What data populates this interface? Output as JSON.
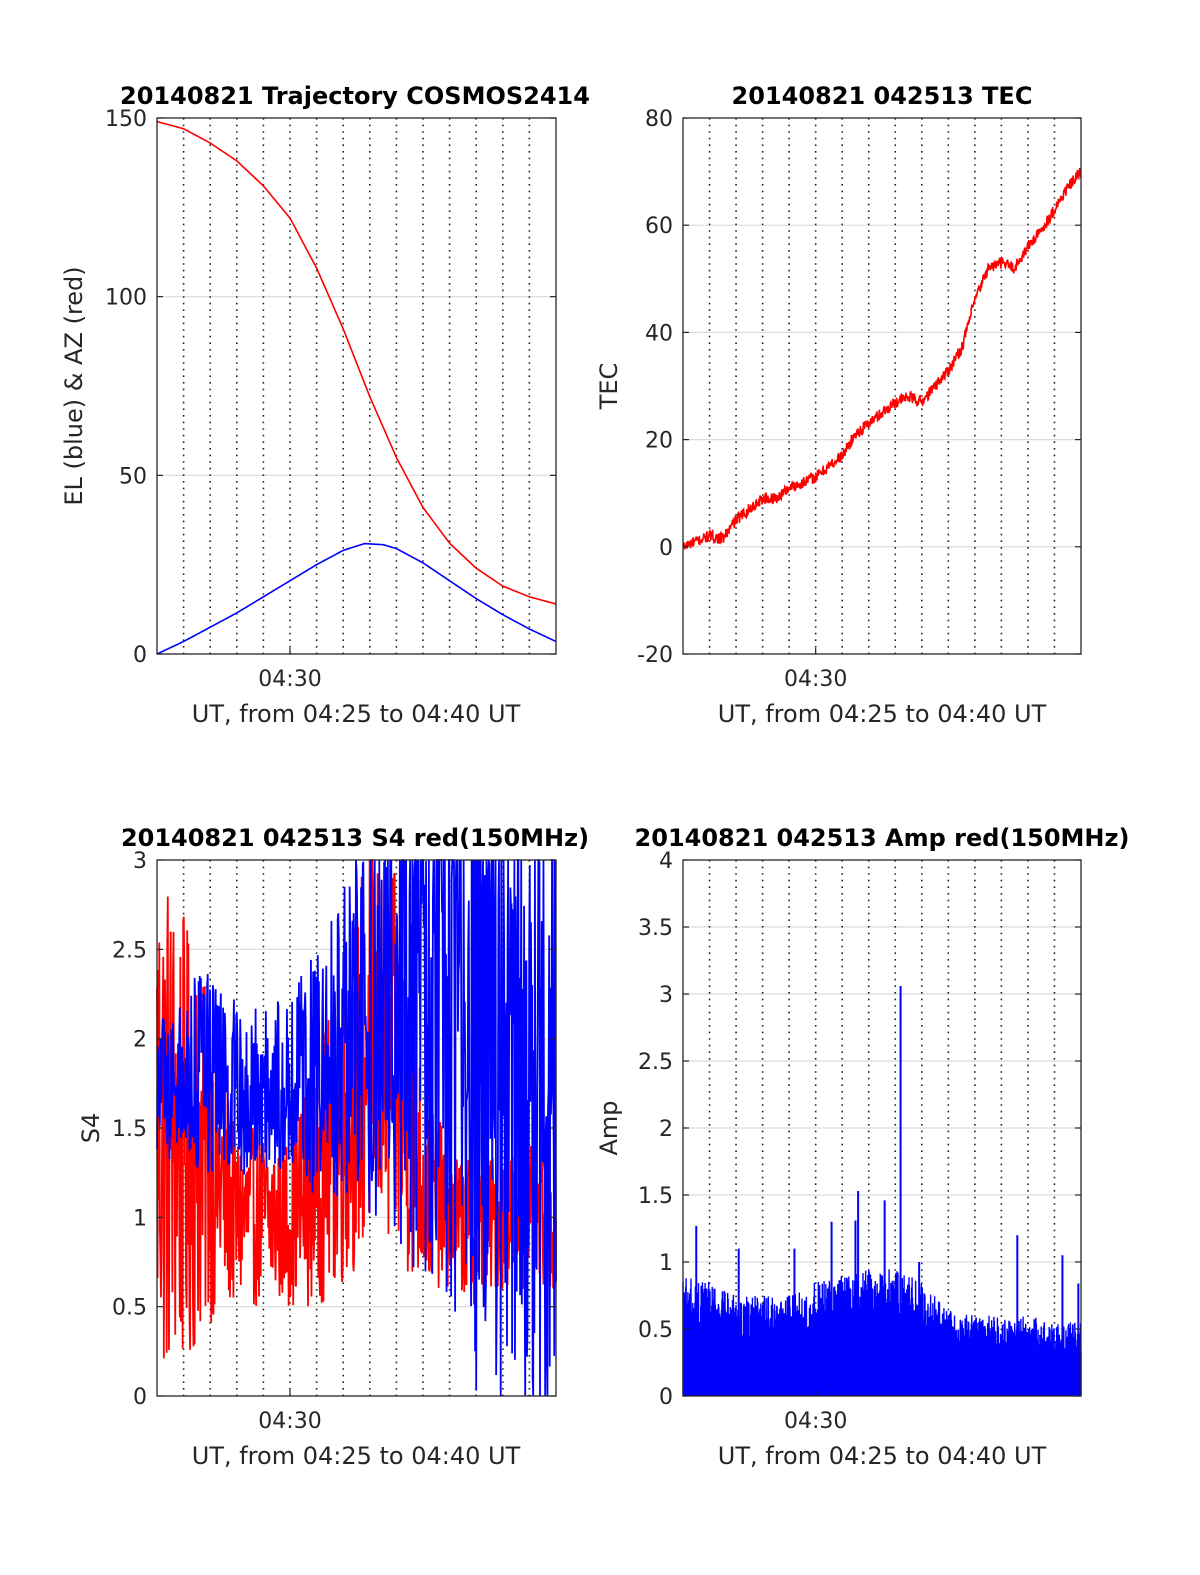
{
  "chart_data": [
    {
      "type": "line",
      "title": "20140821 Trajectory COSMOS2414",
      "xlabel": "UT, from 04:25 to 04:40 UT",
      "ylabel": "EL (blue) & AZ (red)",
      "xlim": [
        0,
        15
      ],
      "ylim": [
        0,
        150
      ],
      "xtick_labels": [
        {
          "x": 5,
          "label": "04:30"
        }
      ],
      "yticks": [
        0,
        50,
        100,
        150
      ],
      "grid_minor_x": [
        1,
        2,
        3,
        4,
        5,
        6,
        7,
        8,
        9,
        10,
        11,
        12,
        13,
        14
      ],
      "series": [
        {
          "color": "#ff0000",
          "x": [
            0,
            1,
            2,
            3,
            4,
            5,
            6,
            7,
            8,
            9,
            10,
            11,
            12,
            13,
            14,
            15
          ],
          "y": [
            149,
            147,
            143,
            138,
            131,
            122,
            108,
            91,
            72,
            55,
            41,
            31,
            24,
            19,
            16,
            14
          ]
        },
        {
          "color": "#0000ff",
          "x": [
            0,
            1,
            2,
            3,
            4,
            5,
            6,
            7,
            7.8,
            8.5,
            9,
            10,
            11,
            12,
            13,
            14,
            15
          ],
          "y": [
            0,
            3.5,
            7.5,
            11.5,
            16,
            20.5,
            25,
            29,
            30.9,
            30.6,
            29.5,
            25.5,
            20.5,
            15.5,
            11,
            7,
            3.5
          ]
        }
      ]
    },
    {
      "type": "line",
      "title": "20140821 042513 TEC",
      "xlabel": "UT, from 04:25 to 04:40 UT",
      "ylabel": "TEC",
      "xlim": [
        0,
        15
      ],
      "ylim": [
        -20,
        80
      ],
      "xtick_labels": [
        {
          "x": 5,
          "label": "04:30"
        }
      ],
      "yticks": [
        -20,
        0,
        20,
        40,
        60,
        80
      ],
      "grid_minor_x": [
        1,
        2,
        3,
        4,
        5,
        6,
        7,
        8,
        9,
        10,
        11,
        12,
        13,
        14
      ],
      "series": [
        {
          "color": "#ff0000",
          "x": [
            0,
            0.5,
            1,
            1.5,
            2,
            2.5,
            3,
            3.5,
            4,
            4.5,
            5,
            5.5,
            6,
            6.5,
            7,
            7.5,
            8,
            8.5,
            9,
            9.5,
            10,
            10.5,
            11,
            11.5,
            12,
            12.5,
            13,
            13.5,
            14,
            14.5,
            15
          ],
          "y": [
            0,
            1,
            2,
            1.5,
            5,
            7,
            9,
            9,
            11,
            12,
            13,
            15,
            17,
            21,
            23,
            25,
            27,
            28,
            27,
            30,
            33,
            37,
            46,
            52,
            53,
            52,
            56,
            59,
            63,
            67,
            70
          ]
        }
      ]
    },
    {
      "type": "line",
      "title": "20140821 042513 S4 red(150MHz)",
      "xlabel": "UT, from 04:25 to 04:40 UT",
      "ylabel": "S4",
      "xlim": [
        0,
        15
      ],
      "ylim": [
        0,
        3
      ],
      "xtick_labels": [
        {
          "x": 5,
          "label": "04:30"
        }
      ],
      "yticks": [
        0,
        0.5,
        1,
        1.5,
        2,
        2.5,
        3
      ],
      "grid_minor_x": [
        1,
        2,
        3,
        4,
        5,
        6,
        7,
        8,
        9,
        10,
        11,
        12,
        13,
        14
      ],
      "noise_series": [
        {
          "color": "#ff0000",
          "n": 700,
          "x_knots": [
            0,
            1,
            2,
            3,
            4,
            5,
            6,
            7,
            8,
            9,
            10,
            11,
            12,
            13,
            14,
            15
          ],
          "center_knots": [
            1.6,
            1.4,
            1.3,
            1.0,
            1.0,
            1.0,
            1.2,
            1.5,
            2.0,
            1.8,
            1.2,
            1.0,
            0.9,
            1.0,
            1.0,
            1.0
          ],
          "amp_knots": [
            1.6,
            1.3,
            0.9,
            0.5,
            0.5,
            0.5,
            0.7,
            0.9,
            1.2,
            1.1,
            0.6,
            0.4,
            0.4,
            0.4,
            0.4,
            0.4
          ]
        },
        {
          "color": "#0000ff",
          "n": 700,
          "x_knots": [
            0,
            1,
            2,
            3,
            4,
            5,
            6,
            7,
            8,
            9,
            10,
            11,
            12,
            13,
            14,
            15
          ],
          "center_knots": [
            1.7,
            1.8,
            1.8,
            1.7,
            1.7,
            1.8,
            1.8,
            2.0,
            2.1,
            2.3,
            2.4,
            2.3,
            2.0,
            1.8,
            1.8,
            1.8
          ],
          "amp_knots": [
            0.4,
            0.5,
            0.6,
            0.5,
            0.5,
            0.5,
            0.7,
            0.9,
            1.1,
            1.4,
            1.8,
            2.0,
            2.0,
            2.0,
            2.0,
            2.0
          ]
        }
      ]
    },
    {
      "type": "line",
      "title": "20140821 042513 Amp red(150MHz)",
      "xlabel": "UT, from 04:25 to 04:40 UT",
      "ylabel": "Amp",
      "xlim": [
        0,
        15
      ],
      "ylim": [
        0,
        4
      ],
      "xtick_labels": [
        {
          "x": 5,
          "label": "04:30"
        }
      ],
      "yticks": [
        0,
        0.5,
        1,
        1.5,
        2,
        2.5,
        3,
        3.5,
        4
      ],
      "grid_minor_x": [
        1,
        2,
        3,
        4,
        5,
        6,
        7,
        8,
        9,
        10,
        11,
        12,
        13,
        14
      ],
      "spikes": {
        "color": "#0000ff",
        "n": 900,
        "x_knots": [
          0,
          1,
          2,
          3,
          4,
          5,
          6,
          7,
          8,
          9,
          10,
          11,
          12,
          13,
          14,
          15
        ],
        "max_knots": [
          0.9,
          0.85,
          0.75,
          0.75,
          0.75,
          0.85,
          0.9,
          0.95,
          0.95,
          0.85,
          0.65,
          0.6,
          0.6,
          0.6,
          0.55,
          0.55
        ],
        "peaks": [
          {
            "x": 0.5,
            "y": 1.27
          },
          {
            "x": 2.1,
            "y": 1.1
          },
          {
            "x": 4.2,
            "y": 1.1
          },
          {
            "x": 5.6,
            "y": 1.3
          },
          {
            "x": 6.5,
            "y": 1.31
          },
          {
            "x": 6.6,
            "y": 1.53
          },
          {
            "x": 7.6,
            "y": 1.46
          },
          {
            "x": 8.2,
            "y": 3.06
          },
          {
            "x": 8.9,
            "y": 1.0
          },
          {
            "x": 12.6,
            "y": 1.2
          },
          {
            "x": 14.3,
            "y": 1.05
          },
          {
            "x": 14.9,
            "y": 0.84
          }
        ]
      }
    }
  ]
}
